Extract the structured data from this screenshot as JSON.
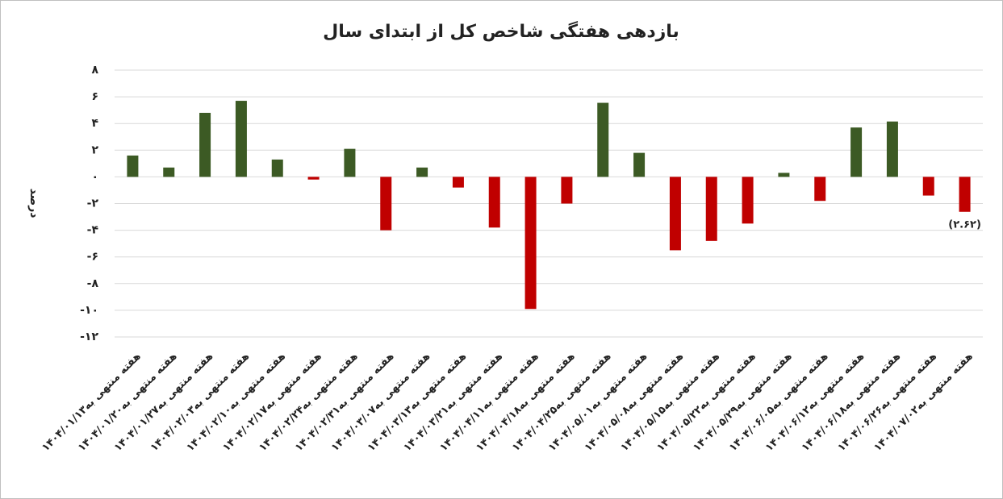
{
  "chart_data": {
    "type": "bar",
    "title": "بازدهی هفتگی شاخص کل از ابتدای سال",
    "y_label": "درصد",
    "categories": [
      "هفته منتهی به۱۴۰۴/۰۱/۱۳",
      "هفته منتهی به۱۴۰۴/۰۱/۲۰",
      "هفته منتهی به۱۴۰۴/۰۱/۲۷",
      "هفته منتهی به۱۴۰۴/۰۲/۰۳",
      "هفته منتهی به۱۴۰۴/۰۲/۱۰",
      "هفته منتهی به۱۴۰۴/۰۲/۱۷",
      "هفته منتهی به۱۴۰۴/۰۲/۲۴",
      "هفته منتهی به۱۴۰۴/۰۲/۳۱",
      "هفته منتهی به۱۴۰۴/۰۳/۰۷",
      "هفته منتهی به۱۴۰۴/۰۳/۱۳",
      "هفته منتهی به۱۴۰۴/۰۳/۲۱",
      "هفته منتهی به۱۴۰۴/۰۴/۱۱",
      "هفته منتهی به۱۴۰۴/۰۴/۱۸",
      "هفته منتهی به۱۴۰۴/۰۴/۲۵",
      "هفته منتهی به۱۴۰۴/۰۵/۰۱",
      "هفته منتهی به۱۴۰۴/۰۵/۰۸",
      "هفته منتهی به۱۴۰۴/۰۵/۱۵",
      "هفته منتهی به۱۴۰۴/۰۵/۲۲",
      "هفته منتهی به۱۴۰۴/۰۵/۲۹",
      "هفته منتهی به۱۴۰۴/۰۶/۰۵",
      "هفته منتهی به۱۴۰۴/۰۶/۱۲",
      "هفته منتهی به۱۴۰۴/۰۶/۱۸",
      "هفته منتهی به۱۴۰۴/۰۶/۲۶",
      "هفته منتهی به۱۴۰۴/۰۷/۰۲"
    ],
    "values": [
      1.6,
      0.7,
      4.8,
      5.7,
      1.3,
      -0.2,
      2.1,
      -4.0,
      0.7,
      -0.8,
      -3.8,
      -9.9,
      -2.0,
      5.55,
      1.8,
      -5.5,
      -4.8,
      -3.5,
      0.3,
      -1.8,
      3.7,
      4.15,
      -1.4,
      -2.62
    ],
    "value_labels": [
      null,
      null,
      null,
      null,
      null,
      null,
      null,
      null,
      null,
      null,
      null,
      null,
      null,
      null,
      null,
      null,
      null,
      null,
      null,
      null,
      null,
      null,
      null,
      "(۲.۶۲)"
    ],
    "positive_color": "#3c5a24",
    "negative_color": "#c00000",
    "ylim": [
      -12,
      8
    ],
    "yticks": [
      {
        "value": 8,
        "label": "۸"
      },
      {
        "value": 6,
        "label": "۶"
      },
      {
        "value": 4,
        "label": "۴"
      },
      {
        "value": 2,
        "label": "۲"
      },
      {
        "value": 0,
        "label": "۰"
      },
      {
        "value": -2,
        "label": "-۲"
      },
      {
        "value": -4,
        "label": "-۴"
      },
      {
        "value": -6,
        "label": "-۶"
      },
      {
        "value": -8,
        "label": "-۸"
      },
      {
        "value": -10,
        "label": "-۱۰"
      },
      {
        "value": -12,
        "label": "-۱۲"
      }
    ],
    "grid": true
  }
}
